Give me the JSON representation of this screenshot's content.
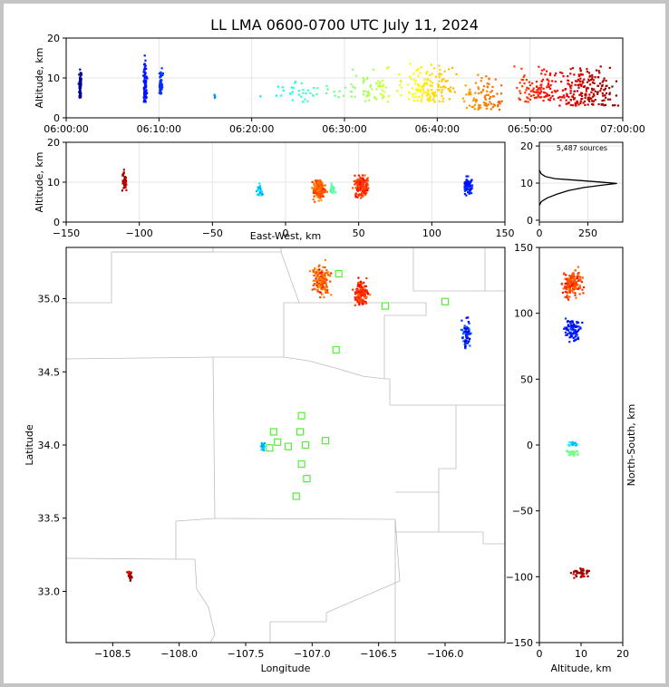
{
  "title": "LL LMA 0600-0700 UTC July 11, 2024",
  "chart_data": [
    {
      "id": "time_height",
      "type": "scatter",
      "ylabel": "Altitude, km",
      "xlim": [
        "06:00:00",
        "07:00:00"
      ],
      "xticks": [
        "06:00:00",
        "06:10:00",
        "06:20:00",
        "06:30:00",
        "06:40:00",
        "06:50:00",
        "07:00:00"
      ],
      "ylim": [
        0,
        20
      ],
      "yticks": [
        0,
        10,
        20
      ],
      "colormap": "jet by time",
      "clusters": [
        {
          "t_min": 1.5,
          "alt_min": 5,
          "alt_max": 14,
          "n": 70,
          "t_spread": 0.15
        },
        {
          "t_min": 8.5,
          "alt_min": 4,
          "alt_max": 16,
          "n": 80,
          "t_spread": 0.2
        },
        {
          "t_min": 10.2,
          "alt_min": 6,
          "alt_max": 14,
          "n": 50,
          "t_spread": 0.2
        },
        {
          "t_min": 16,
          "alt_min": 5,
          "alt_max": 6,
          "n": 6,
          "t_spread": 0.1
        },
        {
          "t_min": 26,
          "alt_min": 4,
          "alt_max": 10,
          "n": 40,
          "t_spread": 4
        },
        {
          "t_min": 33,
          "alt_min": 4,
          "alt_max": 14,
          "n": 60,
          "t_spread": 3
        },
        {
          "t_min": 39,
          "alt_min": 4,
          "alt_max": 14,
          "n": 140,
          "t_spread": 3
        },
        {
          "t_min": 45,
          "alt_min": 2,
          "alt_max": 12,
          "n": 90,
          "t_spread": 2.5
        },
        {
          "t_min": 51,
          "alt_min": 4,
          "alt_max": 14,
          "n": 110,
          "t_spread": 2.5
        },
        {
          "t_min": 56,
          "alt_min": 3,
          "alt_max": 15,
          "n": 200,
          "t_spread": 3
        }
      ]
    },
    {
      "id": "ew_alt",
      "type": "scatter",
      "xlabel": "East-West, km",
      "ylabel": "Altitude, km",
      "xlim": [
        -150,
        150
      ],
      "xticks": [
        -150,
        -100,
        -50,
        0,
        50,
        100,
        150
      ],
      "ylim": [
        0,
        20
      ],
      "yticks": [
        0,
        10,
        20
      ]
    },
    {
      "id": "alt_hist",
      "type": "line",
      "annotation": "5,487 sources",
      "xlim": [
        0,
        430
      ],
      "xticks": [
        0,
        250
      ],
      "ylim": [
        -0.5,
        21
      ],
      "yticks": [
        0,
        10,
        20
      ],
      "profile": [
        [
          0,
          4
        ],
        [
          10,
          5
        ],
        [
          40,
          6
        ],
        [
          90,
          7
        ],
        [
          150,
          8
        ],
        [
          230,
          8.8
        ],
        [
          330,
          9.5
        ],
        [
          400,
          9.9
        ],
        [
          310,
          10.3
        ],
        [
          180,
          10.8
        ],
        [
          80,
          11.2
        ],
        [
          30,
          11.8
        ],
        [
          10,
          12.5
        ],
        [
          0,
          13.5
        ]
      ]
    },
    {
      "id": "plan_view",
      "type": "scatter",
      "xlabel": "Longitude",
      "ylabel": "Latitude",
      "xlim": [
        -108.85,
        -105.55
      ],
      "xticks": [
        -108.5,
        -108.0,
        -107.5,
        -107.0,
        -106.5,
        -106.0
      ],
      "ylim": [
        32.65,
        35.35
      ],
      "yticks": [
        33.0,
        33.5,
        34.0,
        34.5,
        35.0
      ],
      "stations": [
        [
          -106.8,
          35.17
        ],
        [
          -106.45,
          34.95
        ],
        [
          -106.0,
          34.98
        ],
        [
          -106.82,
          34.65
        ],
        [
          -107.08,
          34.2
        ],
        [
          -107.29,
          34.09
        ],
        [
          -107.09,
          34.09
        ],
        [
          -107.26,
          34.02
        ],
        [
          -107.32,
          33.98
        ],
        [
          -107.18,
          33.99
        ],
        [
          -107.05,
          34.0
        ],
        [
          -106.9,
          34.03
        ],
        [
          -107.08,
          33.87
        ],
        [
          -107.04,
          33.77
        ],
        [
          -107.12,
          33.65
        ]
      ],
      "clusters": [
        {
          "lon": -106.93,
          "lat": 35.12,
          "dlon": 0.06,
          "dlat": 0.1,
          "n": 160,
          "t_min": 47
        },
        {
          "lon": -106.63,
          "lat": 35.04,
          "dlon": 0.05,
          "dlat": 0.08,
          "n": 150,
          "t_min": 50
        },
        {
          "lon": -105.84,
          "lat": 34.76,
          "dlon": 0.04,
          "dlat": 0.1,
          "n": 70,
          "t_min": 9
        },
        {
          "lon": -107.37,
          "lat": 33.99,
          "dlon": 0.02,
          "dlat": 0.03,
          "n": 30,
          "t_min": 20
        },
        {
          "lon": -108.37,
          "lat": 33.11,
          "dlon": 0.02,
          "dlat": 0.05,
          "n": 30,
          "t_min": 58
        }
      ]
    },
    {
      "id": "alt_ns",
      "type": "scatter",
      "xlabel": "Altitude, km",
      "ylabel": "North-South, km",
      "xlim": [
        0,
        20
      ],
      "xticks": [
        0,
        10,
        20
      ],
      "ylim": [
        -150,
        150
      ],
      "yticks": [
        -150,
        -100,
        -50,
        0,
        50,
        100,
        150
      ]
    }
  ]
}
